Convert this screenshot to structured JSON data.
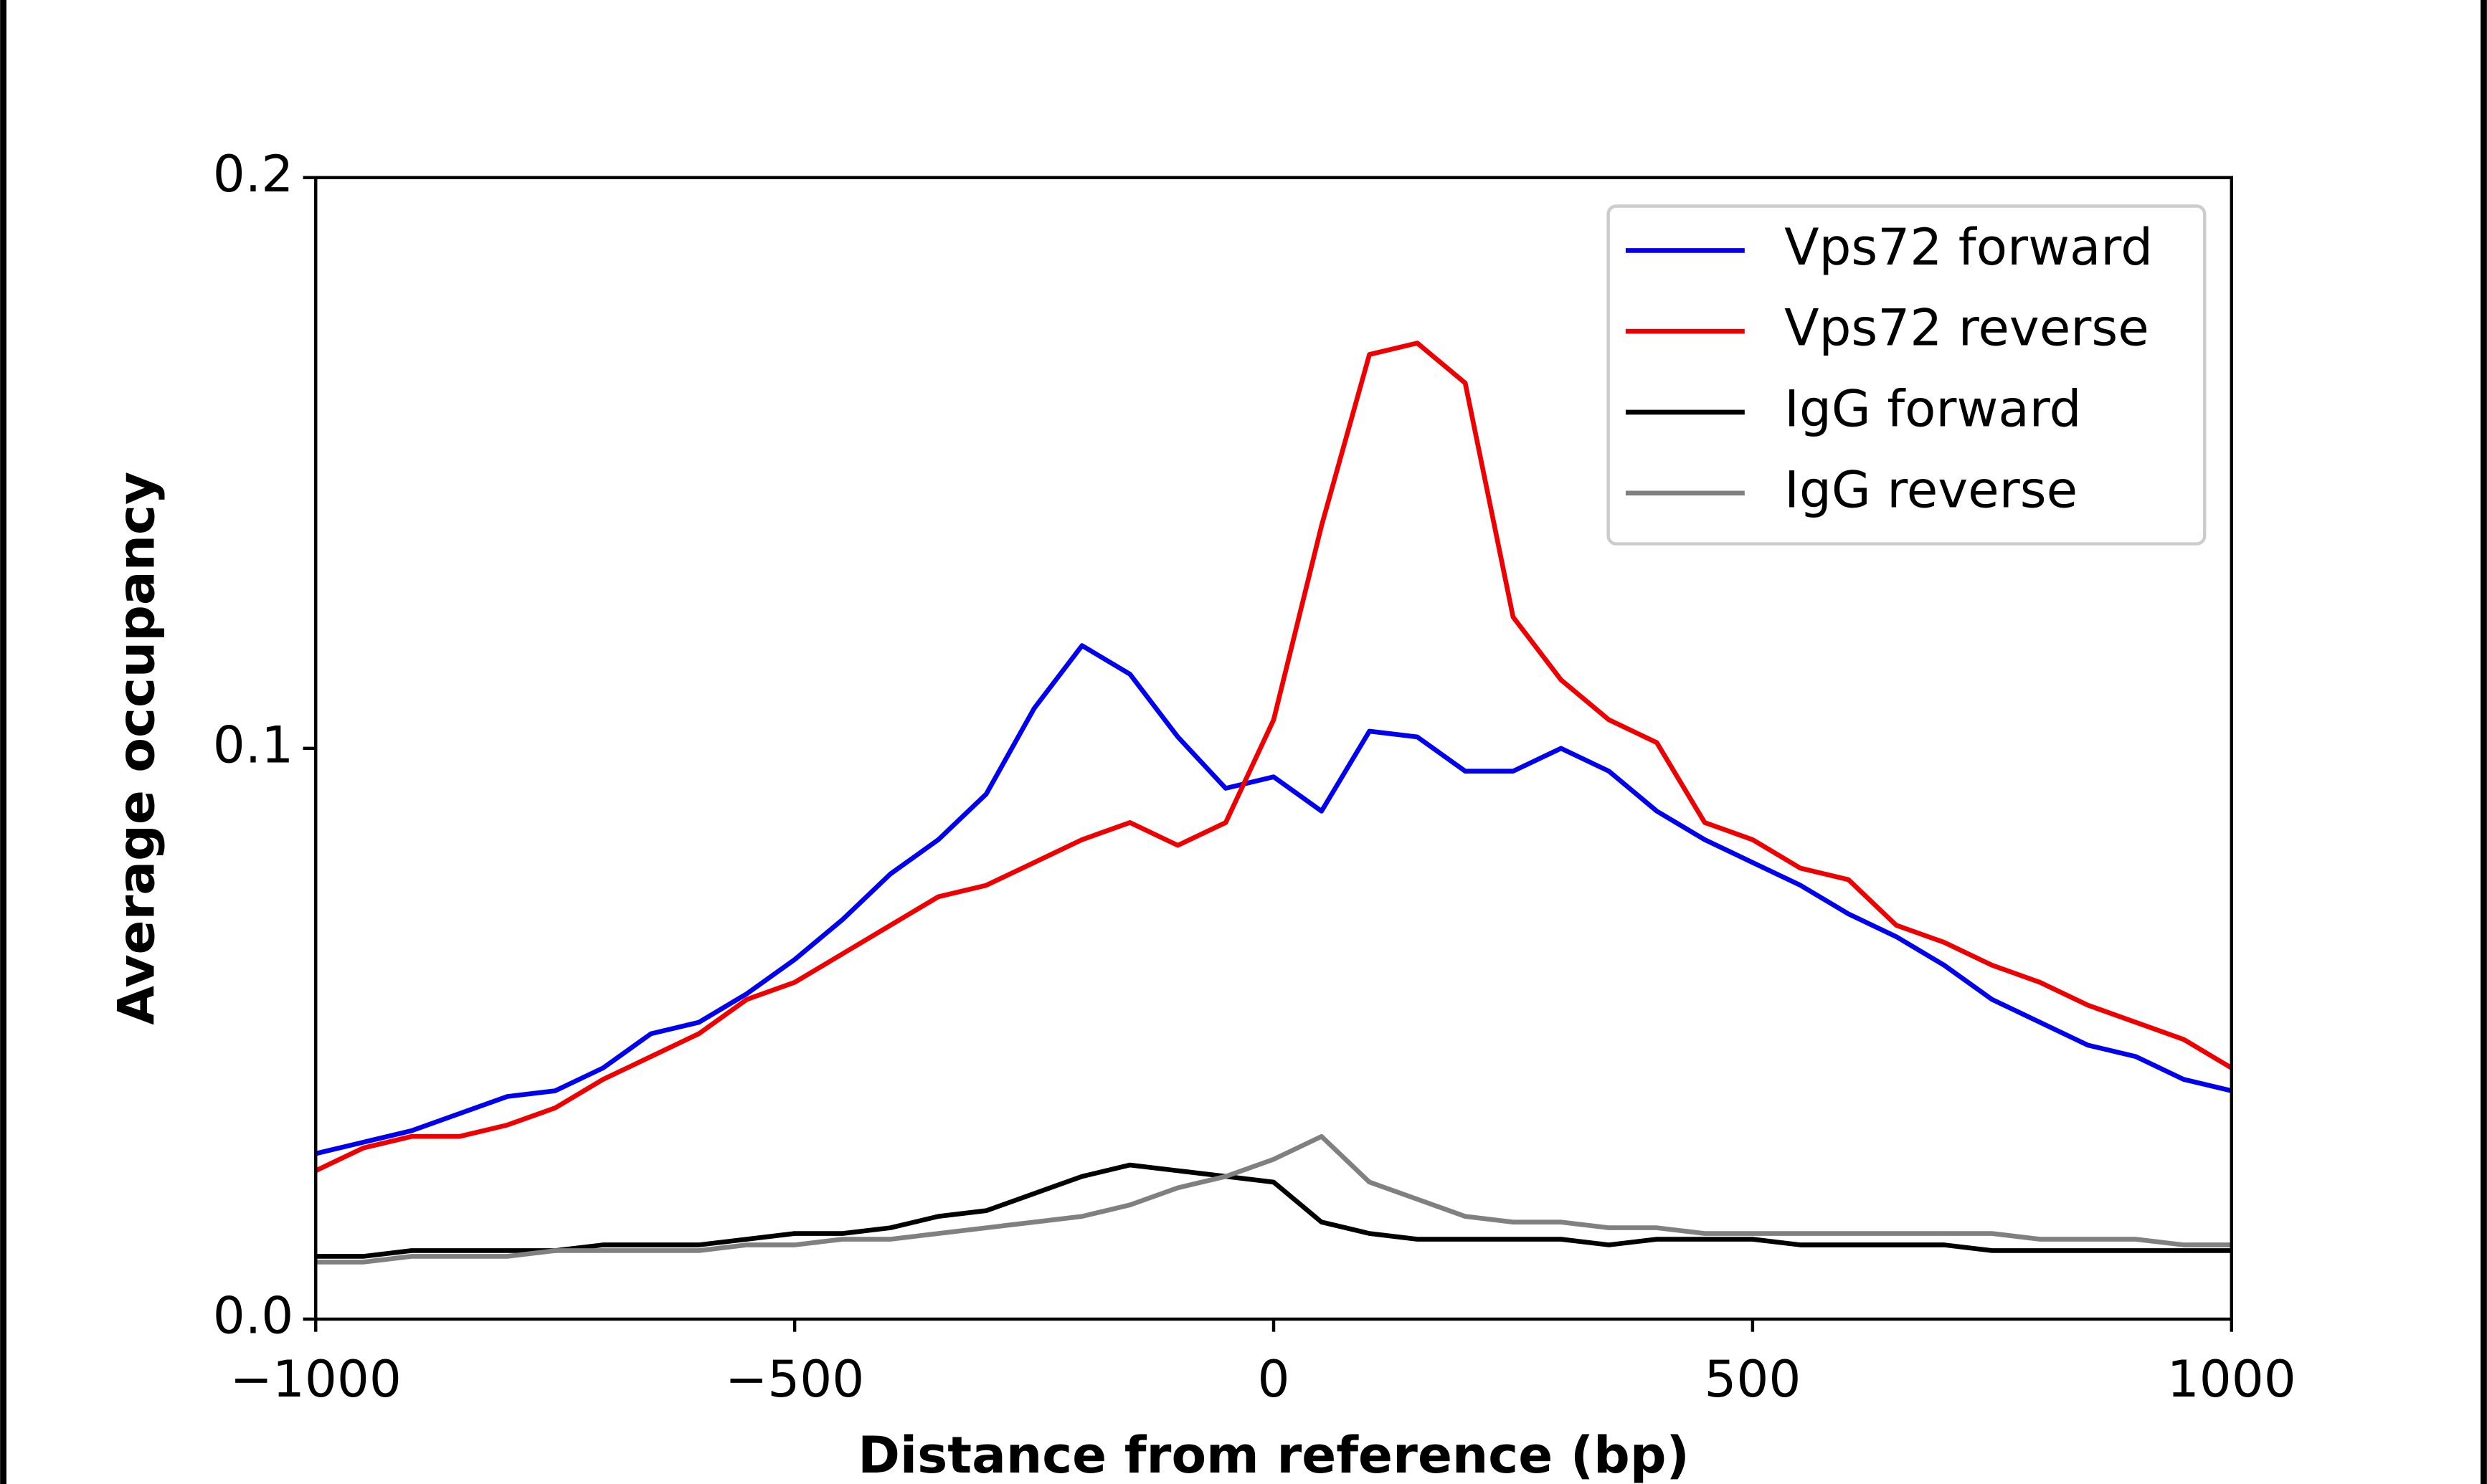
{
  "chart_data": {
    "type": "line",
    "xlabel": "Distance from reference (bp)",
    "ylabel": "Average occupancy",
    "x": [
      -1000,
      -950,
      -900,
      -850,
      -800,
      -750,
      -700,
      -650,
      -600,
      -550,
      -500,
      -450,
      -400,
      -350,
      -300,
      -250,
      -200,
      -150,
      -100,
      -50,
      0,
      50,
      100,
      150,
      200,
      250,
      300,
      350,
      400,
      450,
      500,
      550,
      600,
      650,
      700,
      750,
      800,
      850,
      900,
      950,
      1000
    ],
    "series": [
      {
        "name": "Vps72 forward",
        "color": "#0000ee",
        "values": [
          0.029,
          0.031,
          0.033,
          0.036,
          0.039,
          0.04,
          0.044,
          0.05,
          0.052,
          0.057,
          0.063,
          0.07,
          0.078,
          0.084,
          0.092,
          0.107,
          0.118,
          0.113,
          0.102,
          0.093,
          0.095,
          0.089,
          0.103,
          0.102,
          0.096,
          0.096,
          0.1,
          0.096,
          0.089,
          0.084,
          0.08,
          0.076,
          0.071,
          0.067,
          0.062,
          0.056,
          0.052,
          0.048,
          0.046,
          0.042,
          0.04
        ]
      },
      {
        "name": "Vps72 reverse",
        "color": "#ee0000",
        "values": [
          0.026,
          0.03,
          0.032,
          0.032,
          0.034,
          0.037,
          0.042,
          0.046,
          0.05,
          0.056,
          0.059,
          0.064,
          0.069,
          0.074,
          0.076,
          0.08,
          0.084,
          0.087,
          0.083,
          0.087,
          0.105,
          0.139,
          0.169,
          0.171,
          0.164,
          0.123,
          0.112,
          0.105,
          0.101,
          0.087,
          0.084,
          0.079,
          0.077,
          0.069,
          0.066,
          0.062,
          0.059,
          0.055,
          0.052,
          0.049,
          0.044
        ]
      },
      {
        "name": "IgG forward",
        "color": "#000000",
        "values": [
          0.011,
          0.011,
          0.012,
          0.012,
          0.012,
          0.012,
          0.013,
          0.013,
          0.013,
          0.014,
          0.015,
          0.015,
          0.016,
          0.018,
          0.019,
          0.022,
          0.025,
          0.027,
          0.026,
          0.025,
          0.024,
          0.017,
          0.015,
          0.014,
          0.014,
          0.014,
          0.014,
          0.013,
          0.014,
          0.014,
          0.014,
          0.013,
          0.013,
          0.013,
          0.013,
          0.012,
          0.012,
          0.012,
          0.012,
          0.012,
          0.012
        ]
      },
      {
        "name": "IgG reverse",
        "color": "#808080",
        "values": [
          0.01,
          0.01,
          0.011,
          0.011,
          0.011,
          0.012,
          0.012,
          0.012,
          0.012,
          0.013,
          0.013,
          0.014,
          0.014,
          0.015,
          0.016,
          0.017,
          0.018,
          0.02,
          0.023,
          0.025,
          0.028,
          0.032,
          0.024,
          0.021,
          0.018,
          0.017,
          0.017,
          0.016,
          0.016,
          0.015,
          0.015,
          0.015,
          0.015,
          0.015,
          0.015,
          0.015,
          0.014,
          0.014,
          0.014,
          0.013,
          0.013
        ]
      }
    ],
    "xlim": [
      -1000,
      1000
    ],
    "xticks": [
      {
        "value": -1000,
        "label": "−1000"
      },
      {
        "value": -500,
        "label": "−500"
      },
      0,
      500,
      1000
    ],
    "ylim": [
      0,
      0.2
    ],
    "yticks": [
      {
        "value": 0,
        "label": "0.0"
      },
      0.1,
      0.2
    ],
    "legend": "upper right"
  }
}
